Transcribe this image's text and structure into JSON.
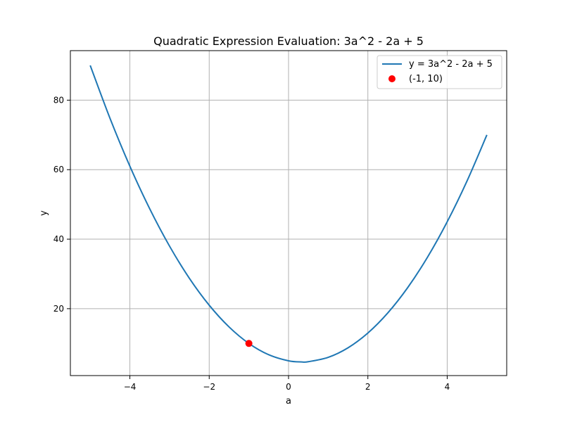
{
  "chart_data": {
    "type": "line",
    "title": "Quadratic Expression Evaluation: 3a^2 - 2a + 5",
    "xlabel": "a",
    "ylabel": "y",
    "xlim": [
      -5.5,
      5.5
    ],
    "ylim": [
      0.75,
      94.25
    ],
    "xticks": [
      -4,
      -2,
      0,
      2,
      4
    ],
    "yticks": [
      20,
      40,
      60,
      80
    ],
    "grid": true,
    "legend_position": "top-right",
    "series": [
      {
        "name": "y = 3a^2 - 2a + 5",
        "kind": "line",
        "color": "#1f77b4",
        "x": [
          -5,
          -4.5,
          -4,
          -3.5,
          -3,
          -2.5,
          -2,
          -1.5,
          -1,
          -0.5,
          0,
          0.333,
          0.5,
          1,
          1.5,
          2,
          2.5,
          3,
          3.5,
          4,
          4.5,
          5
        ],
        "y": [
          90,
          74.75,
          61,
          48.75,
          38,
          28.75,
          21,
          14.75,
          10,
          6.75,
          5,
          4.67,
          4.75,
          6,
          8.75,
          13,
          18.75,
          26,
          34.75,
          45,
          56.75,
          70
        ]
      },
      {
        "name": "(-1, 10)",
        "kind": "point",
        "color": "#ff0000",
        "x": [
          -1
        ],
        "y": [
          10
        ]
      }
    ]
  }
}
